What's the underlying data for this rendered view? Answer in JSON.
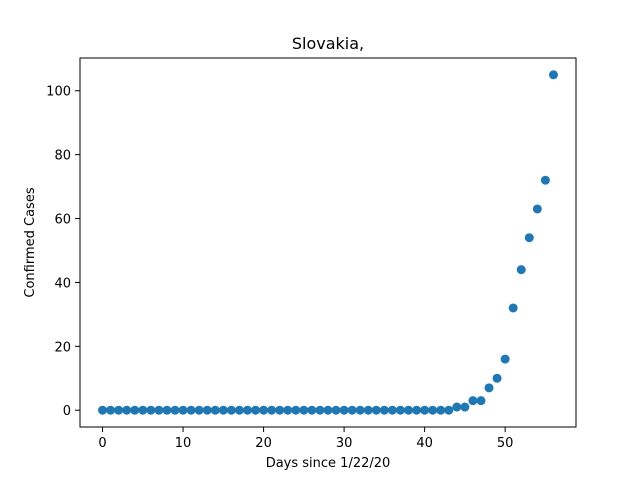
{
  "chart_data": {
    "type": "scatter",
    "title": "Slovakia,",
    "xlabel": "Days since 1/22/20",
    "ylabel": "Confirmed Cases",
    "xlim": [
      -2.8,
      58.8
    ],
    "ylim": [
      -5.25,
      110.25
    ],
    "xticks": [
      0,
      10,
      20,
      30,
      40,
      50
    ],
    "yticks": [
      0,
      20,
      40,
      60,
      80,
      100
    ],
    "grid": false,
    "marker_color": "#1f77b4",
    "series": [
      {
        "x": [
          0,
          1,
          2,
          3,
          4,
          5,
          6,
          7,
          8,
          9,
          10,
          11,
          12,
          13,
          14,
          15,
          16,
          17,
          18,
          19,
          20,
          21,
          22,
          23,
          24,
          25,
          26,
          27,
          28,
          29,
          30,
          31,
          32,
          33,
          34,
          35,
          36,
          37,
          38,
          39,
          40,
          41,
          42,
          43,
          44,
          45,
          46,
          47,
          48,
          49,
          50,
          51,
          52,
          53,
          54,
          55,
          56
        ],
        "y": [
          0,
          0,
          0,
          0,
          0,
          0,
          0,
          0,
          0,
          0,
          0,
          0,
          0,
          0,
          0,
          0,
          0,
          0,
          0,
          0,
          0,
          0,
          0,
          0,
          0,
          0,
          0,
          0,
          0,
          0,
          0,
          0,
          0,
          0,
          0,
          0,
          0,
          0,
          0,
          0,
          0,
          0,
          0,
          0,
          1,
          1,
          3,
          3,
          7,
          10,
          16,
          32,
          44,
          54,
          63,
          72,
          105
        ]
      }
    ]
  }
}
